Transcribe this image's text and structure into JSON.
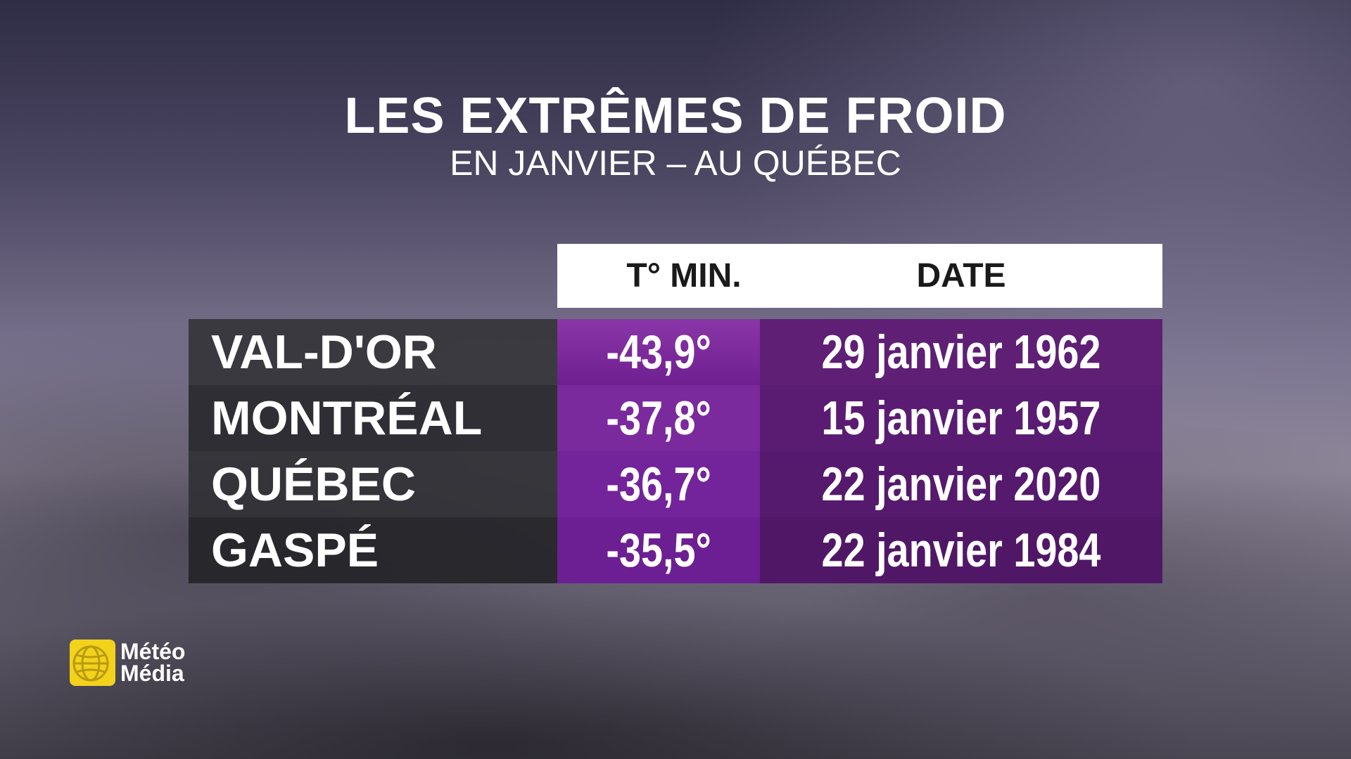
{
  "header": {
    "title": "LES EXTRÊMES DE FROID",
    "subtitle": "EN JANVIER – AU QUÉBEC"
  },
  "table": {
    "columns": [
      "T° MIN.",
      "DATE"
    ],
    "rows": [
      [
        "VAL-D'OR",
        "-43,9°",
        "29 janvier 1962"
      ],
      [
        "MONTRÉAL",
        "-37,8°",
        "15 janvier 1957"
      ],
      [
        "QUÉBEC",
        "-36,7°",
        "22 janvier 2020"
      ],
      [
        "GASPÉ",
        "-35,5°",
        "22 janvier 1984"
      ]
    ]
  },
  "logo": {
    "lines": [
      "Météo",
      "Média"
    ]
  }
}
